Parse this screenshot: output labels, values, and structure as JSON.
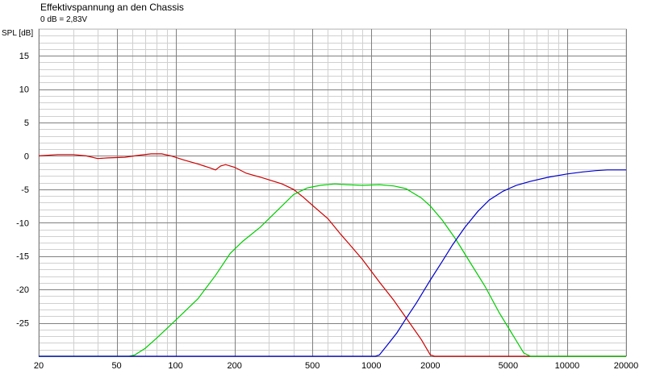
{
  "chart_data": {
    "type": "line",
    "title": "Effektivspannung an den Chassis",
    "subtitle": "0 dB = 2,83V",
    "ylabel": "SPL [dB]",
    "xlabel": "",
    "xscale": "log",
    "xlim": [
      20,
      20000
    ],
    "ylim": [
      -30,
      19
    ],
    "grid": true,
    "x_ticks": [
      20,
      50,
      100,
      200,
      500,
      1000,
      2000,
      5000,
      10000,
      20000
    ],
    "y_ticks": [
      15,
      10,
      5,
      0,
      -5,
      -10,
      -15,
      -20,
      -25
    ],
    "series": [
      {
        "color": "#cc0000",
        "points": [
          [
            20,
            0
          ],
          [
            25,
            0.2
          ],
          [
            30,
            0.2
          ],
          [
            35,
            0
          ],
          [
            40,
            -0.4
          ],
          [
            45,
            -0.3
          ],
          [
            55,
            -0.2
          ],
          [
            65,
            0.1
          ],
          [
            75,
            0.3
          ],
          [
            85,
            0.3
          ],
          [
            95,
            0
          ],
          [
            110,
            -0.6
          ],
          [
            130,
            -1.2
          ],
          [
            150,
            -1.8
          ],
          [
            160,
            -2.1
          ],
          [
            170,
            -1.5
          ],
          [
            180,
            -1.3
          ],
          [
            200,
            -1.7
          ],
          [
            230,
            -2.6
          ],
          [
            280,
            -3.3
          ],
          [
            350,
            -4.2
          ],
          [
            400,
            -5
          ],
          [
            450,
            -6.2
          ],
          [
            500,
            -7.4
          ],
          [
            600,
            -9.4
          ],
          [
            700,
            -11.8
          ],
          [
            760,
            -13
          ],
          [
            900,
            -15.5
          ],
          [
            1100,
            -18.9
          ],
          [
            1300,
            -21.6
          ],
          [
            1500,
            -24.2
          ],
          [
            1800,
            -27.5
          ],
          [
            2000,
            -29.8
          ],
          [
            2100,
            -30
          ],
          [
            20000,
            -30
          ]
        ]
      },
      {
        "color": "#00cc00",
        "points": [
          [
            20,
            -30
          ],
          [
            58,
            -30
          ],
          [
            62,
            -29.8
          ],
          [
            70,
            -28.8
          ],
          [
            80,
            -27.3
          ],
          [
            100,
            -24.6
          ],
          [
            130,
            -21.4
          ],
          [
            160,
            -17.9
          ],
          [
            190,
            -14.6
          ],
          [
            220,
            -12.8
          ],
          [
            270,
            -10.7
          ],
          [
            330,
            -8.2
          ],
          [
            400,
            -5.8
          ],
          [
            470,
            -4.8
          ],
          [
            550,
            -4.4
          ],
          [
            650,
            -4.2
          ],
          [
            750,
            -4.3
          ],
          [
            900,
            -4.4
          ],
          [
            1100,
            -4.3
          ],
          [
            1300,
            -4.5
          ],
          [
            1500,
            -4.9
          ],
          [
            1800,
            -6.3
          ],
          [
            2000,
            -7.5
          ],
          [
            2300,
            -9.6
          ],
          [
            2700,
            -12.5
          ],
          [
            3200,
            -16
          ],
          [
            3800,
            -19.5
          ],
          [
            4500,
            -23.5
          ],
          [
            5200,
            -26.5
          ],
          [
            6000,
            -29.5
          ],
          [
            6500,
            -30
          ],
          [
            20000,
            -30
          ]
        ]
      },
      {
        "color": "#0000cc",
        "points": [
          [
            20,
            -30
          ],
          [
            1050,
            -30
          ],
          [
            1100,
            -29.8
          ],
          [
            1200,
            -28.4
          ],
          [
            1350,
            -26.5
          ],
          [
            1500,
            -24.4
          ],
          [
            1700,
            -22
          ],
          [
            2000,
            -18.6
          ],
          [
            2300,
            -15.8
          ],
          [
            2600,
            -13.3
          ],
          [
            3000,
            -10.7
          ],
          [
            3500,
            -8.3
          ],
          [
            4000,
            -6.6
          ],
          [
            4700,
            -5.3
          ],
          [
            5500,
            -4.4
          ],
          [
            6500,
            -3.8
          ],
          [
            8000,
            -3.2
          ],
          [
            10000,
            -2.7
          ],
          [
            12000,
            -2.4
          ],
          [
            14000,
            -2.2
          ],
          [
            16000,
            -2.1
          ],
          [
            20000,
            -2.1
          ]
        ]
      }
    ]
  }
}
